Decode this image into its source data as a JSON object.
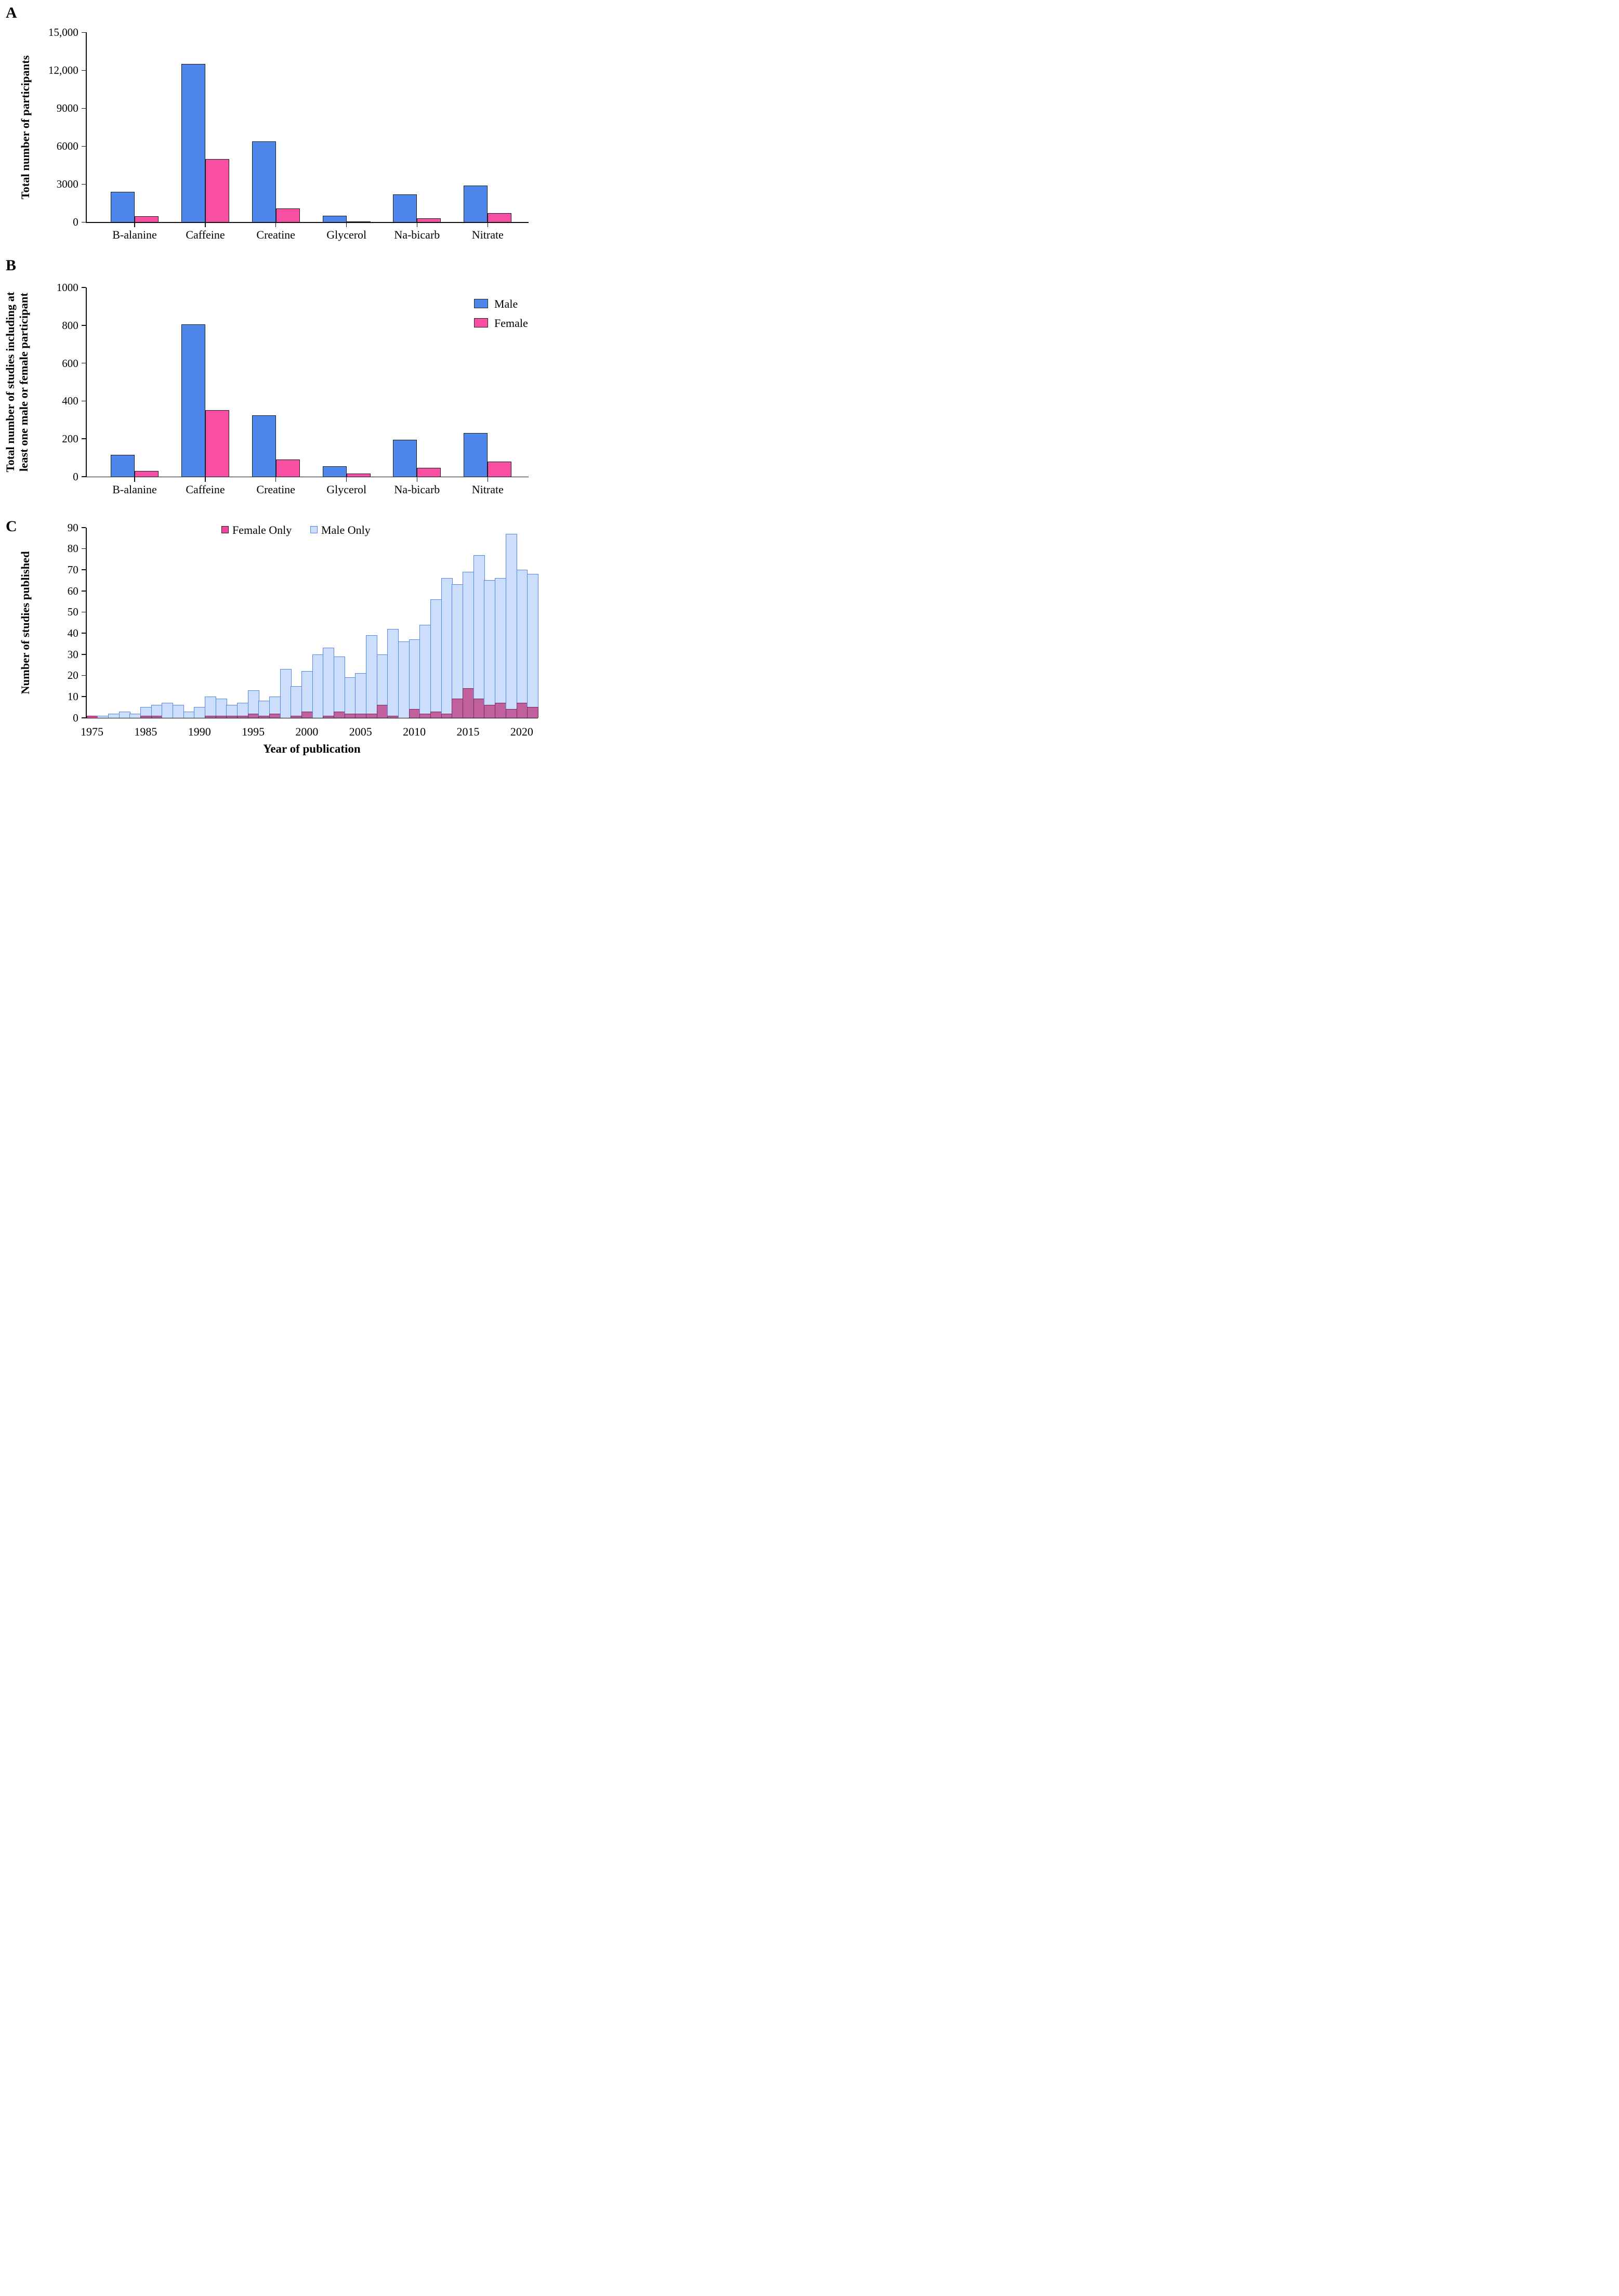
{
  "figure": {
    "panel_letters": {
      "a": "A",
      "b": "B",
      "c": "C"
    }
  },
  "colors": {
    "male_blue": "#4F86EC",
    "female_pink": "#F84FA2",
    "bar_border_dark": "#1b1b1b",
    "male_only_fill": "#CCDEFB",
    "male_only_border": "#4E86EC",
    "female_only_bright": "#F5449E",
    "female_only_overlap": "#C2609E",
    "axis_black": "#111111"
  },
  "chart_data": [
    {
      "type": "bar",
      "panel": "A",
      "title": "",
      "ylabel": "Total number of participants",
      "xlabel": "",
      "categories": [
        "B-alanine",
        "Caffeine",
        "Creatine",
        "Glycerol",
        "Na-bicarb",
        "Nitrate"
      ],
      "series": [
        {
          "name": "Male",
          "values": [
            2400,
            12500,
            6400,
            500,
            2200,
            2900
          ]
        },
        {
          "name": "Female",
          "values": [
            450,
            5000,
            1100,
            30,
            280,
            710
          ]
        }
      ],
      "ylim": [
        0,
        15000
      ],
      "yticks": [
        {
          "v": 0,
          "label": "0"
        },
        {
          "v": 3000,
          "label": "3000"
        },
        {
          "v": 6000,
          "label": "6000"
        },
        {
          "v": 9000,
          "label": "9000"
        },
        {
          "v": 12000,
          "label": "12,000"
        },
        {
          "v": 15000,
          "label": "15,000"
        }
      ],
      "grid": false,
      "legend": null
    },
    {
      "type": "bar",
      "panel": "B",
      "title": "",
      "ylabel": "Total number of studies including at\nleast one male or female participant",
      "xlabel": "",
      "categories": [
        "B-alanine",
        "Caffeine",
        "Creatine",
        "Glycerol",
        "Na-bicarb",
        "Nitrate"
      ],
      "series": [
        {
          "name": "Male",
          "values": [
            115,
            805,
            325,
            55,
            195,
            230
          ]
        },
        {
          "name": "Female",
          "values": [
            30,
            350,
            90,
            15,
            45,
            80
          ]
        }
      ],
      "ylim": [
        0,
        1000
      ],
      "yticks": [
        {
          "v": 0,
          "label": "0"
        },
        {
          "v": 200,
          "label": "200"
        },
        {
          "v": 400,
          "label": "400"
        },
        {
          "v": 600,
          "label": "600"
        },
        {
          "v": 800,
          "label": "800"
        },
        {
          "v": 1000,
          "label": "1000"
        }
      ],
      "grid": false,
      "legend": {
        "position": "top-right",
        "items": [
          {
            "label": "Male"
          },
          {
            "label": "Female"
          }
        ]
      }
    },
    {
      "type": "bar",
      "panel": "C",
      "title": "",
      "ylabel": "Number of studies published",
      "xlabel": "Year of publication",
      "note": "overlaid histogram; one bar per publication year with data (early years are 2-year steps)",
      "years": [
        1975,
        1977,
        1979,
        1981,
        1983,
        1985,
        1986,
        1987,
        1988,
        1989,
        1990,
        1991,
        1992,
        1993,
        1994,
        1995,
        1996,
        1997,
        1998,
        1999,
        2000,
        2001,
        2002,
        2003,
        2004,
        2005,
        2006,
        2007,
        2008,
        2009,
        2010,
        2011,
        2012,
        2013,
        2014,
        2015,
        2016,
        2017,
        2018,
        2019,
        2020,
        2021
      ],
      "series": [
        {
          "name": "Male Only",
          "values": [
            0,
            1,
            2,
            3,
            2,
            5,
            6,
            7,
            6,
            3,
            5,
            10,
            9,
            6,
            7,
            13,
            8,
            10,
            23,
            15,
            22,
            30,
            33,
            29,
            19,
            21,
            39,
            30,
            42,
            36,
            37,
            44,
            56,
            66,
            63,
            69,
            77,
            65,
            66,
            87,
            70,
            68
          ]
        },
        {
          "name": "Female Only",
          "values": [
            1,
            0,
            0,
            0,
            0,
            1,
            1,
            0,
            0,
            0,
            0,
            1,
            1,
            1,
            1,
            2,
            1,
            2,
            0,
            1,
            3,
            0,
            1,
            3,
            2,
            2,
            2,
            6,
            1,
            0,
            4,
            2,
            3,
            2,
            9,
            14,
            9,
            6,
            7,
            4,
            7,
            5
          ]
        }
      ],
      "ylim": [
        0,
        90
      ],
      "yticks": [
        {
          "v": 0,
          "label": "0"
        },
        {
          "v": 10,
          "label": "10"
        },
        {
          "v": 20,
          "label": "20"
        },
        {
          "v": 30,
          "label": "30"
        },
        {
          "v": 40,
          "label": "40"
        },
        {
          "v": 50,
          "label": "50"
        },
        {
          "v": 60,
          "label": "60"
        },
        {
          "v": 70,
          "label": "70"
        },
        {
          "v": 80,
          "label": "80"
        },
        {
          "v": 90,
          "label": "90"
        }
      ],
      "xticks": [
        {
          "year_index": 0,
          "label": "1975"
        },
        {
          "year_index": 5,
          "label": "1985"
        },
        {
          "year_index": 10,
          "label": "1990"
        },
        {
          "year_index": 15,
          "label": "1995"
        },
        {
          "year_index": 20,
          "label": "2000"
        },
        {
          "year_index": 25,
          "label": "2005"
        },
        {
          "year_index": 30,
          "label": "2010"
        },
        {
          "year_index": 35,
          "label": "2015"
        },
        {
          "year_index": 40,
          "label": "2020"
        }
      ],
      "grid": false,
      "legend": {
        "position": "top-center",
        "items": [
          {
            "label": "Female Only"
          },
          {
            "label": "Male Only"
          }
        ]
      }
    }
  ]
}
